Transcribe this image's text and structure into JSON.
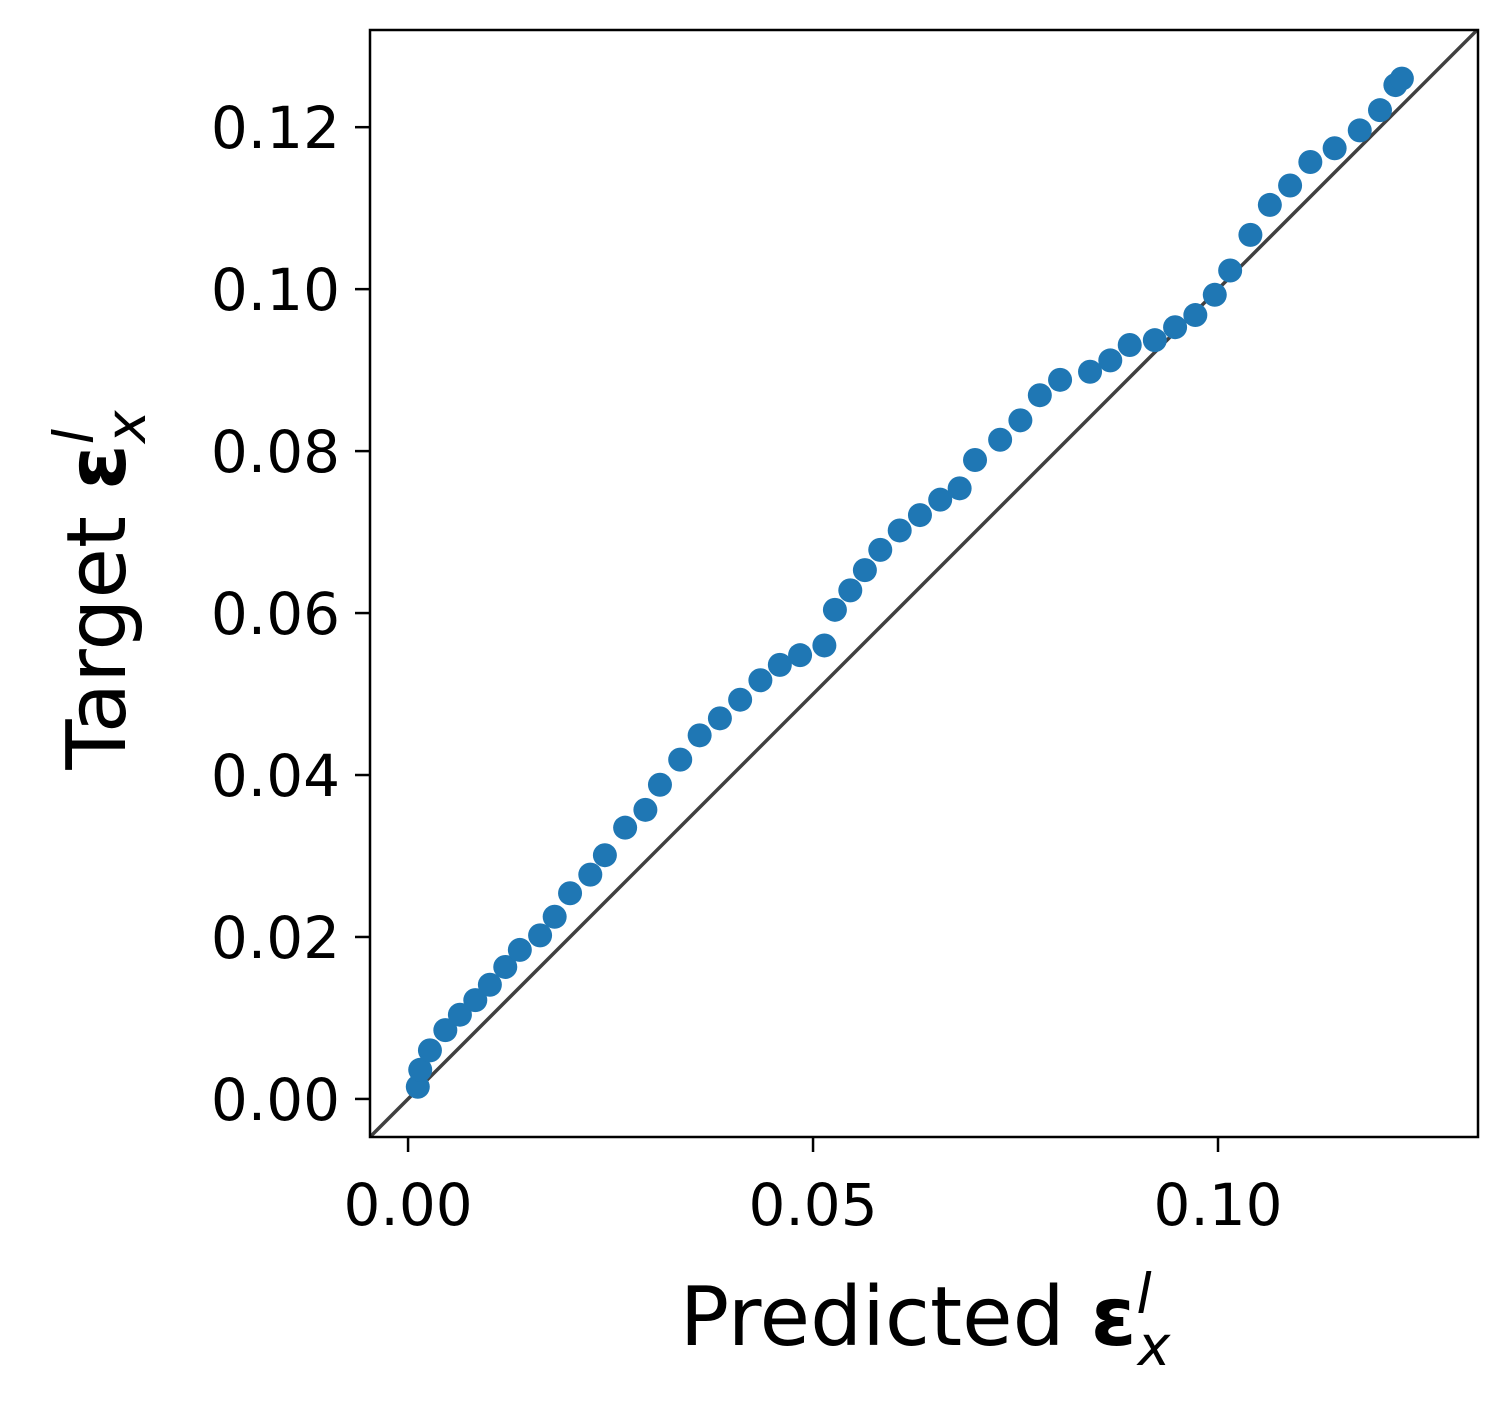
{
  "chart_data": {
    "type": "scatter",
    "xlabel": {
      "text": "Predicted",
      "symbol": "ε",
      "superscript": "l",
      "subscript": "x"
    },
    "ylabel": {
      "text": "Target",
      "symbol": "ε",
      "superscript": "l",
      "subscript": "x"
    },
    "x": [
      0.0012,
      0.0015,
      0.0027,
      0.0046,
      0.0064,
      0.0083,
      0.0101,
      0.012,
      0.0138,
      0.0163,
      0.0181,
      0.02,
      0.0225,
      0.0243,
      0.0268,
      0.0293,
      0.0311,
      0.0336,
      0.036,
      0.0385,
      0.041,
      0.0435,
      0.0459,
      0.0484,
      0.0514,
      0.0527,
      0.0546,
      0.0564,
      0.0583,
      0.0607,
      0.0632,
      0.0657,
      0.0681,
      0.07,
      0.0731,
      0.0756,
      0.078,
      0.0805,
      0.0842,
      0.0867,
      0.0891,
      0.0922,
      0.0947,
      0.0972,
      0.0996,
      0.1015,
      0.104,
      0.1064,
      0.1089,
      0.1114,
      0.1144,
      0.1175,
      0.12,
      0.1219,
      0.1227
    ],
    "values": [
      0.0015,
      0.0036,
      0.006,
      0.0085,
      0.0104,
      0.0122,
      0.0141,
      0.0163,
      0.0184,
      0.0202,
      0.0225,
      0.0254,
      0.0277,
      0.0301,
      0.0335,
      0.0357,
      0.0388,
      0.0419,
      0.0449,
      0.047,
      0.0493,
      0.0517,
      0.0536,
      0.0548,
      0.056,
      0.0604,
      0.0628,
      0.0653,
      0.0678,
      0.0702,
      0.0721,
      0.074,
      0.0754,
      0.0789,
      0.0814,
      0.0838,
      0.0869,
      0.0888,
      0.0898,
      0.0912,
      0.0931,
      0.0937,
      0.0953,
      0.0968,
      0.0993,
      0.1023,
      0.1067,
      0.1104,
      0.1128,
      0.1157,
      0.1174,
      0.1196,
      0.1221,
      0.1252,
      0.126
    ],
    "color": "#1f77b4",
    "xlim": [
      -0.0047,
      0.1321
    ],
    "ylim": [
      -0.0047,
      0.132
    ],
    "xticks": [
      {
        "value": 0,
        "label": "0.00"
      },
      {
        "value": 0.05,
        "label": "0.05"
      },
      {
        "value": 0.1,
        "label": "0.10"
      }
    ],
    "yticks": [
      {
        "value": 0,
        "label": "0.00"
      },
      {
        "value": 0.02,
        "label": "0.02"
      },
      {
        "value": 0.04,
        "label": "0.04"
      },
      {
        "value": 0.06,
        "label": "0.06"
      },
      {
        "value": 0.08,
        "label": "0.08"
      },
      {
        "value": 0.1,
        "label": "0.10"
      },
      {
        "value": 0.12,
        "label": "0.12"
      }
    ],
    "grid": false
  }
}
